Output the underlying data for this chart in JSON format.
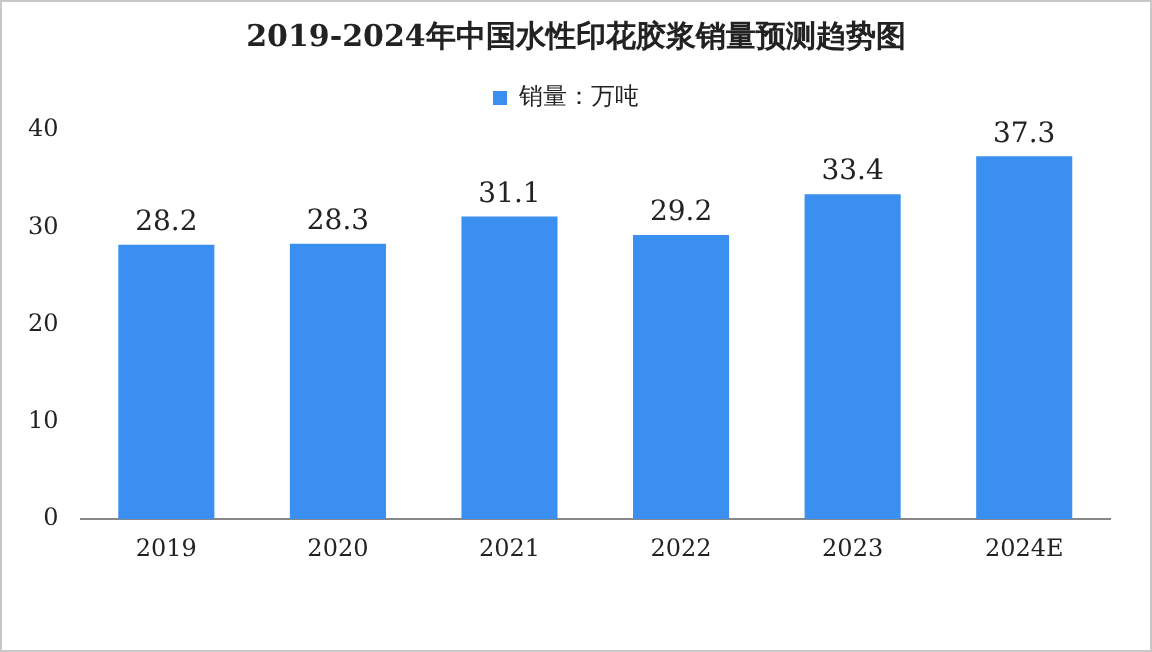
{
  "chart_data": {
    "type": "bar",
    "title": "2019-2024年中国水性印花胶浆销量预测趋势图",
    "categories": [
      "2019",
      "2020",
      "2021",
      "2022",
      "2023",
      "2024E"
    ],
    "series": [
      {
        "name": "销量：万吨",
        "color": "#3b8ff0",
        "values": [
          28.2,
          28.3,
          31.1,
          29.2,
          33.4,
          37.3
        ]
      }
    ],
    "ylim": [
      0,
      40
    ],
    "yticks": [
      0,
      10,
      20,
      30,
      40
    ],
    "grid": false,
    "legend": "top",
    "data_labels": true
  }
}
